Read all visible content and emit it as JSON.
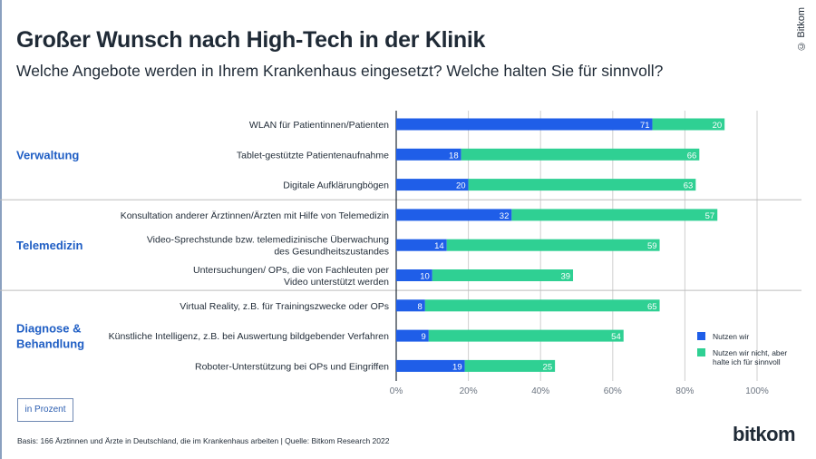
{
  "header": {
    "title": "Großer Wunsch nach High-Tech in der Klinik",
    "subtitle": "Welche Angebote werden in Ihrem Krankenhaus eingesetzt? Welche halten Sie für sinnvoll?",
    "copyright": "© Bitkom"
  },
  "footer": {
    "unit_label": "in Prozent",
    "source": "Basis: 166 Ärztinnen und Ärzte in Deutschland, die im Krankenhaus arbeiten | Quelle: Bitkom Research 2022",
    "logo": "bitkom"
  },
  "colors": {
    "nutzen": "#1f5ee8",
    "sinnvoll": "#2fd093",
    "group_label": "#1f5ec4",
    "grid": "#cfcfcf"
  },
  "chart_data": {
    "type": "bar",
    "orientation": "horizontal",
    "stacked": true,
    "xlim": [
      0,
      100
    ],
    "xticks": [
      "0%",
      "20%",
      "40%",
      "60%",
      "80%",
      "100%"
    ],
    "grid": true,
    "legend_position": "right",
    "groups": [
      {
        "label": "Verwaltung",
        "start": 0,
        "end": 2
      },
      {
        "label": "Telemedizin",
        "start": 3,
        "end": 5
      },
      {
        "label": "Diagnose & Behandlung",
        "start": 6,
        "end": 8
      }
    ],
    "categories": [
      "WLAN für Patientinnen/Patienten",
      "Tablet-gestützte Patientenaufnahme",
      "Digitale Aufklärungbögen",
      "Konsultation anderer Ärztinnen/Ärzten mit Hilfe von Telemedizin",
      "Video-Sprechstunde bzw. telemedizinische Überwachung\ndes Gesundheitszustandes",
      "Untersuchungen/ OPs, die von Fachleuten per\nVideo unterstützt werden",
      "Virtual Reality, z.B. für Trainingszwecke oder OPs",
      "Künstliche Intelligenz, z.B. bei Auswertung bildgebender Verfahren",
      "Roboter-Unterstützung bei OPs und Eingriffen"
    ],
    "series": [
      {
        "name": "Nutzen wir",
        "values": [
          71,
          18,
          20,
          32,
          14,
          10,
          8,
          9,
          19
        ]
      },
      {
        "name": "Nutzen wir nicht, aber halte ich für sinnvoll",
        "values": [
          20,
          66,
          63,
          57,
          59,
          39,
          65,
          54,
          25
        ]
      }
    ]
  }
}
